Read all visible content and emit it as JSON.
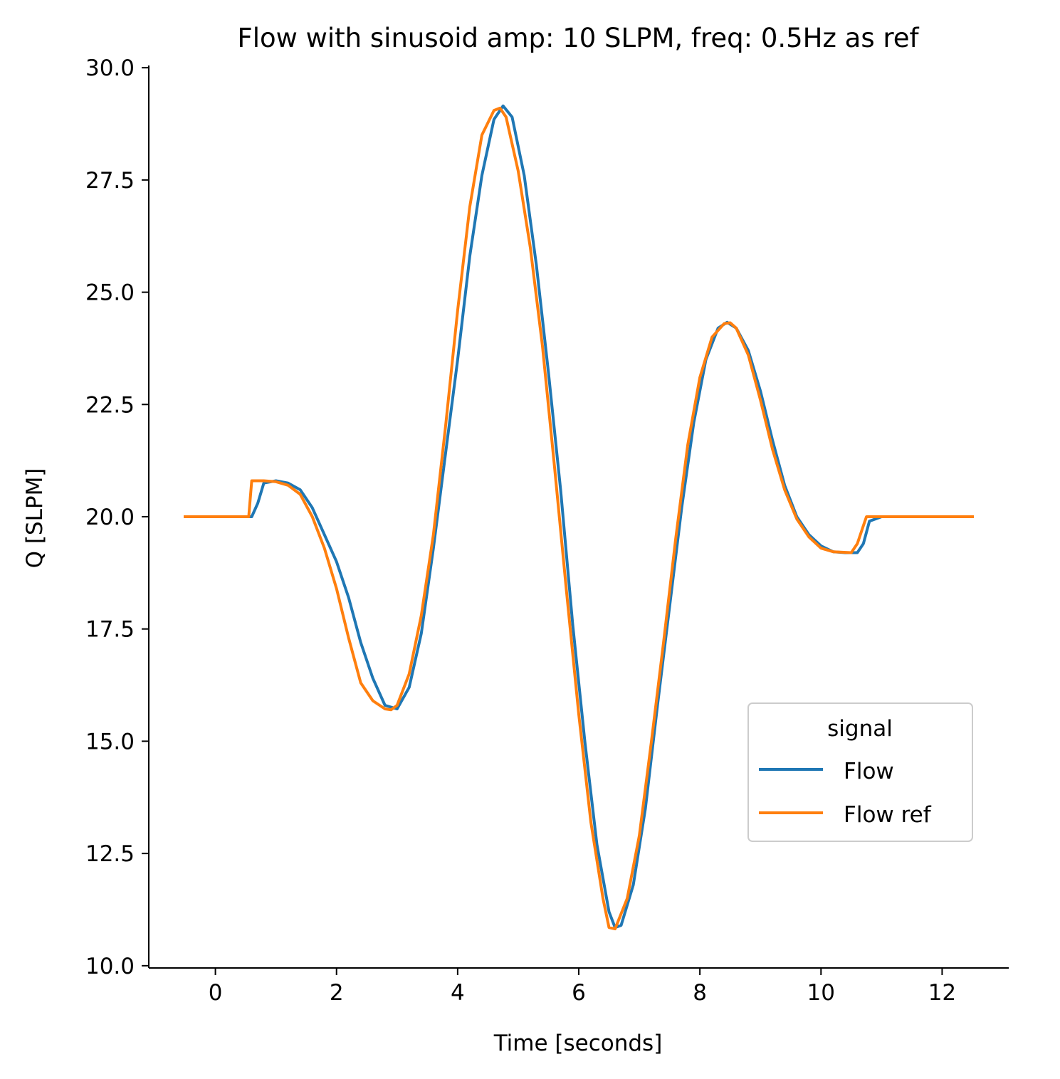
{
  "chart_data": {
    "type": "line",
    "title": "Flow with sinusoid amp: 10 SLPM, freq: 0.5Hz as ref",
    "xlabel": "Time [seconds]",
    "ylabel": "Q [SLPM]",
    "xlim": [
      -1.1,
      13.1
    ],
    "ylim": [
      9.95,
      30.05
    ],
    "xticks": [
      0,
      2,
      4,
      6,
      8,
      10,
      12
    ],
    "xtick_labels": [
      "0",
      "2",
      "4",
      "6",
      "8",
      "10",
      "12"
    ],
    "yticks": [
      10.0,
      12.5,
      15.0,
      17.5,
      20.0,
      22.5,
      25.0,
      27.5,
      30.0
    ],
    "ytick_labels": [
      "10.0",
      "12.5",
      "15.0",
      "17.5",
      "20.0",
      "22.5",
      "25.0",
      "27.5",
      "30.0"
    ],
    "grid": false,
    "legend": {
      "title": "signal",
      "position": "lower-right"
    },
    "series": [
      {
        "name": "Flow",
        "color": "#1f77b4",
        "x": [
          -0.5,
          0.6,
          0.7,
          0.8,
          1.0,
          1.2,
          1.4,
          1.6,
          1.8,
          2.0,
          2.2,
          2.4,
          2.6,
          2.8,
          3.0,
          3.2,
          3.4,
          3.6,
          3.8,
          4.0,
          4.2,
          4.4,
          4.6,
          4.75,
          4.9,
          5.1,
          5.3,
          5.5,
          5.7,
          5.9,
          6.1,
          6.3,
          6.5,
          6.6,
          6.7,
          6.9,
          7.1,
          7.3,
          7.5,
          7.7,
          7.9,
          8.1,
          8.3,
          8.45,
          8.6,
          8.8,
          9.0,
          9.2,
          9.4,
          9.6,
          9.8,
          10.0,
          10.2,
          10.4,
          10.6,
          10.7,
          10.8,
          11.0,
          12.5
        ],
        "y": [
          20.0,
          20.0,
          20.3,
          20.75,
          20.8,
          20.75,
          20.6,
          20.2,
          19.6,
          19.0,
          18.2,
          17.2,
          16.4,
          15.8,
          15.72,
          16.2,
          17.4,
          19.3,
          21.4,
          23.5,
          25.8,
          27.6,
          28.85,
          29.15,
          28.9,
          27.6,
          25.6,
          23.2,
          20.6,
          17.6,
          15.0,
          12.7,
          11.2,
          10.85,
          10.9,
          11.8,
          13.5,
          15.8,
          18.0,
          20.2,
          22.1,
          23.5,
          24.2,
          24.33,
          24.2,
          23.7,
          22.8,
          21.7,
          20.7,
          20.0,
          19.6,
          19.35,
          19.22,
          19.2,
          19.2,
          19.4,
          19.9,
          20.0,
          20.0
        ]
      },
      {
        "name": "Flow ref",
        "color": "#ff7f0e",
        "x": [
          -0.5,
          0.55,
          0.6,
          0.8,
          1.0,
          1.2,
          1.4,
          1.6,
          1.8,
          2.0,
          2.2,
          2.4,
          2.6,
          2.8,
          2.9,
          3.0,
          3.2,
          3.4,
          3.6,
          3.8,
          4.0,
          4.2,
          4.4,
          4.6,
          4.7,
          4.8,
          5.0,
          5.2,
          5.4,
          5.6,
          5.8,
          6.0,
          6.2,
          6.4,
          6.5,
          6.6,
          6.8,
          7.0,
          7.2,
          7.4,
          7.6,
          7.8,
          8.0,
          8.2,
          8.4,
          8.5,
          8.6,
          8.8,
          9.0,
          9.2,
          9.4,
          9.6,
          9.8,
          10.0,
          10.2,
          10.5,
          10.6,
          10.7,
          10.75,
          11.0,
          12.5
        ],
        "y": [
          20.0,
          20.0,
          20.8,
          20.8,
          20.78,
          20.7,
          20.5,
          20.0,
          19.3,
          18.4,
          17.3,
          16.3,
          15.9,
          15.72,
          15.7,
          15.8,
          16.5,
          17.8,
          19.6,
          22.0,
          24.6,
          26.9,
          28.5,
          29.05,
          29.1,
          28.9,
          27.7,
          26.0,
          23.8,
          21.1,
          18.3,
          15.6,
          13.2,
          11.5,
          10.85,
          10.82,
          11.5,
          12.9,
          15.0,
          17.2,
          19.5,
          21.6,
          23.1,
          24.0,
          24.3,
          24.32,
          24.2,
          23.6,
          22.6,
          21.5,
          20.6,
          19.95,
          19.55,
          19.3,
          19.22,
          19.2,
          19.4,
          19.8,
          20.0,
          20.0,
          20.0
        ]
      }
    ]
  }
}
